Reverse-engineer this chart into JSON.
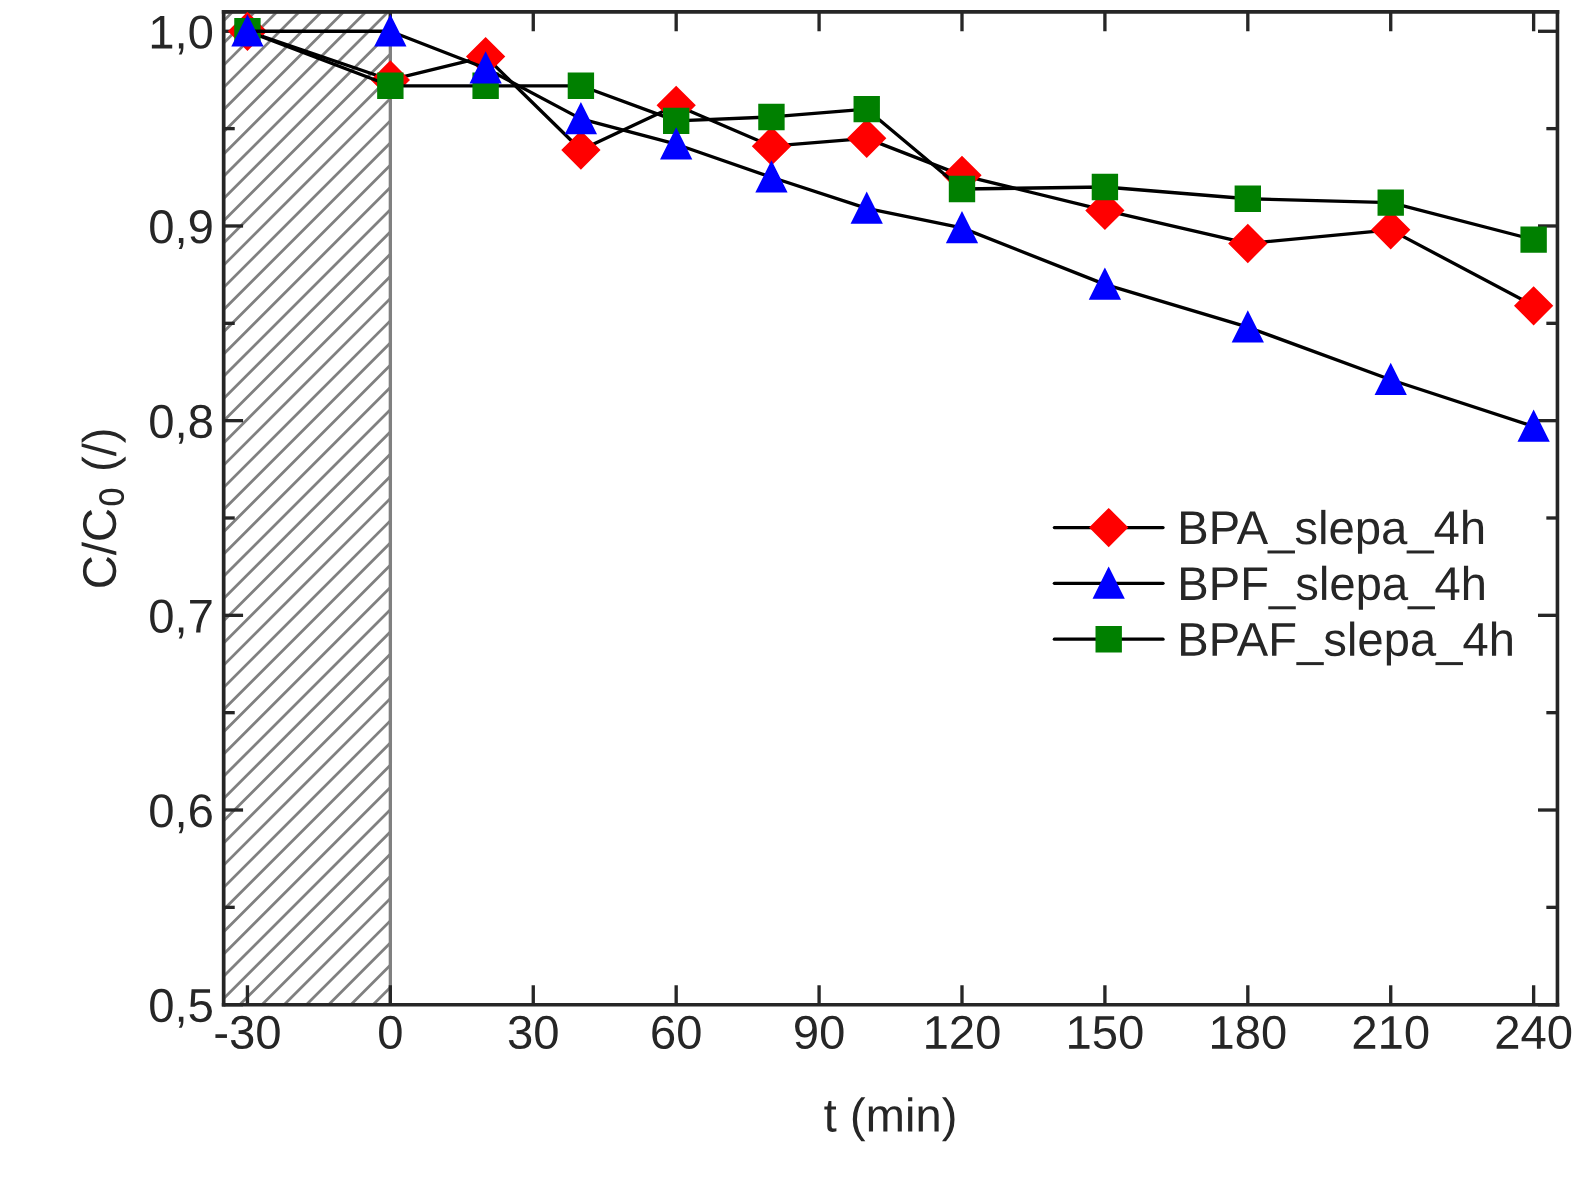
{
  "chart_data": {
    "type": "line",
    "xlabel": "t (min)",
    "ylabel": "C/C$_{0}$ (/)",
    "x": [
      -30,
      0,
      20,
      40,
      60,
      80,
      100,
      120,
      150,
      180,
      210,
      240
    ],
    "series": [
      {
        "name": "BPA_slepa_4h",
        "color": "#ff0000",
        "marker": "diamond",
        "values": [
          1.0,
          0.975,
          0.987,
          0.939,
          0.962,
          0.941,
          0.945,
          0.926,
          0.908,
          0.891,
          0.898,
          0.859
        ]
      },
      {
        "name": "BPF_slepa_4h",
        "color": "#0000ff",
        "marker": "triangle",
        "values": [
          1.0,
          1.0,
          0.981,
          0.955,
          0.942,
          0.925,
          0.909,
          0.899,
          0.87,
          0.848,
          0.821,
          0.797
        ]
      },
      {
        "name": "BPAF_slepa_4h",
        "color": "#008000",
        "marker": "square",
        "values": [
          1.0,
          0.972,
          0.972,
          0.972,
          0.954,
          0.956,
          0.96,
          0.919,
          0.92,
          0.914,
          0.912,
          0.893
        ]
      }
    ],
    "xlim": [
      -35,
      245
    ],
    "xticks": [
      -30,
      0,
      30,
      60,
      90,
      120,
      150,
      180,
      210,
      240
    ],
    "ylim": [
      0.5,
      1.01
    ],
    "yticks": [
      {
        "value": 0.5,
        "label": "0,5"
      },
      {
        "value": 0.6,
        "label": "0,6"
      },
      {
        "value": 0.7,
        "label": "0,7"
      },
      {
        "value": 0.8,
        "label": "0,8"
      },
      {
        "value": 0.9,
        "label": "0,9"
      },
      {
        "value": 1.0,
        "label": "1,0"
      }
    ],
    "bands": [
      {
        "axis": "x",
        "from": -35,
        "to": 0,
        "color": "#808080"
      }
    ],
    "legend": "right",
    "grid": false,
    "line_style": "solid"
  }
}
